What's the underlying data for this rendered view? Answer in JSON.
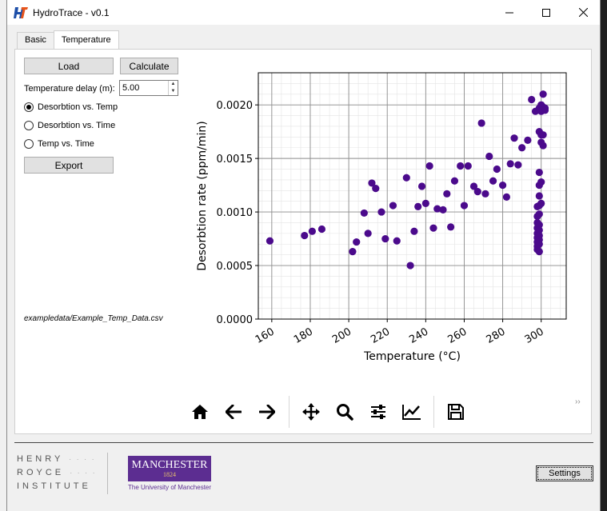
{
  "window": {
    "title": "HydroTrace - v0.1",
    "icon": "hydrotrace-logo-icon"
  },
  "tabs": [
    {
      "label": "Basic",
      "active": false
    },
    {
      "label": "Temperature",
      "active": true
    }
  ],
  "controls": {
    "load_label": "Load",
    "calculate_label": "Calculate",
    "temp_delay_label": "Temperature delay (m):",
    "temp_delay_value": "5.00",
    "radio_options": [
      {
        "label": "Desorbtion vs. Temp",
        "selected": true
      },
      {
        "label": "Desorbtion vs. Time",
        "selected": false
      },
      {
        "label": "Temp vs. Time",
        "selected": false
      }
    ],
    "export_label": "Export",
    "file_path": "exampledata/Example_Temp_Data.csv"
  },
  "toolbar": {
    "icons": [
      "home-icon",
      "back-arrow-icon",
      "forward-arrow-icon",
      "pan-icon",
      "zoom-icon",
      "configure-subplots-icon",
      "edit-axis-icon",
      "save-icon"
    ],
    "more": "››"
  },
  "footer": {
    "hri_lines": [
      "HENRY",
      "ROYCE",
      "INSTITUTE"
    ],
    "manchester_name": "MANCHESTER",
    "manchester_year": "1824",
    "manchester_sub": "The University of Manchester",
    "settings_label": "Settings"
  },
  "chart_data": {
    "type": "scatter",
    "xlabel": "Temperature (°C)",
    "ylabel": "Desorbtion rate (ppm/min)",
    "xlim": [
      153,
      313
    ],
    "ylim": [
      0,
      0.0023
    ],
    "xticks": [
      160,
      180,
      200,
      220,
      240,
      260,
      280,
      300
    ],
    "yticks": [
      0,
      0.0005,
      0.001,
      0.0015,
      0.002
    ],
    "ytick_labels": [
      "0.0000",
      "0.0005",
      "0.0010",
      "0.0015",
      "0.0020"
    ],
    "grid": true,
    "minor_grid": true,
    "color": "#4b0a8c",
    "points": [
      [
        159,
        0.00073
      ],
      [
        177,
        0.00078
      ],
      [
        181,
        0.00082
      ],
      [
        186,
        0.00084
      ],
      [
        202,
        0.00063
      ],
      [
        204,
        0.00072
      ],
      [
        208,
        0.00099
      ],
      [
        210,
        0.0008
      ],
      [
        212,
        0.00127
      ],
      [
        214,
        0.00122
      ],
      [
        217,
        0.001
      ],
      [
        219,
        0.00075
      ],
      [
        223,
        0.00106
      ],
      [
        225,
        0.00073
      ],
      [
        230,
        0.00132
      ],
      [
        232,
        0.0005
      ],
      [
        234,
        0.00082
      ],
      [
        236,
        0.00105
      ],
      [
        238,
        0.00124
      ],
      [
        240,
        0.00108
      ],
      [
        242,
        0.00143
      ],
      [
        244,
        0.00085
      ],
      [
        246,
        0.00103
      ],
      [
        249,
        0.00102
      ],
      [
        251,
        0.00117
      ],
      [
        253,
        0.00086
      ],
      [
        255,
        0.00129
      ],
      [
        258,
        0.00143
      ],
      [
        260,
        0.00106
      ],
      [
        262,
        0.00143
      ],
      [
        265,
        0.00124
      ],
      [
        267,
        0.00119
      ],
      [
        269,
        0.00183
      ],
      [
        271,
        0.00117
      ],
      [
        273,
        0.00152
      ],
      [
        275,
        0.00129
      ],
      [
        277,
        0.0014
      ],
      [
        280,
        0.00125
      ],
      [
        282,
        0.00114
      ],
      [
        284,
        0.00145
      ],
      [
        286,
        0.00169
      ],
      [
        288,
        0.00144
      ],
      [
        290,
        0.0016
      ],
      [
        293,
        0.00167
      ],
      [
        295,
        0.00205
      ],
      [
        297,
        0.00194
      ],
      [
        298,
        0.00105
      ],
      [
        298,
        0.00096
      ],
      [
        298,
        0.0009
      ],
      [
        298,
        0.00085
      ],
      [
        298,
        0.0008
      ],
      [
        298,
        0.00076
      ],
      [
        298,
        0.00072
      ],
      [
        298,
        0.00068
      ],
      [
        298,
        0.00065
      ],
      [
        299,
        0.00063
      ],
      [
        299,
        0.00197
      ],
      [
        299,
        0.00175
      ],
      [
        299,
        0.00137
      ],
      [
        299,
        0.00125
      ],
      [
        299,
        0.00115
      ],
      [
        299,
        0.00106
      ],
      [
        299,
        0.00098
      ],
      [
        299,
        0.00088
      ],
      [
        299,
        0.00083
      ],
      [
        299,
        0.00078
      ],
      [
        299,
        0.00074
      ],
      [
        299,
        0.0007
      ],
      [
        300,
        0.002
      ],
      [
        300,
        0.00194
      ],
      [
        300,
        0.00172
      ],
      [
        300,
        0.00165
      ],
      [
        300,
        0.00128
      ],
      [
        300,
        0.00108
      ],
      [
        301,
        0.0021
      ],
      [
        301,
        0.00198
      ],
      [
        301,
        0.00172
      ],
      [
        301,
        0.00162
      ],
      [
        302,
        0.00195
      ],
      [
        302,
        0.00197
      ]
    ]
  }
}
